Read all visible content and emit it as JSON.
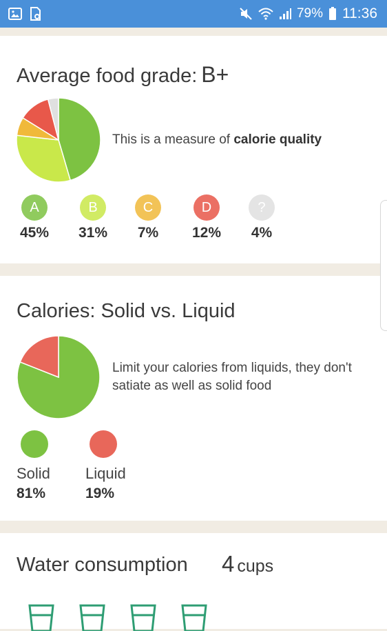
{
  "status_bar": {
    "left_icons": [
      "image-icon",
      "screenshot-icon"
    ],
    "right_icons": [
      "mute-icon",
      "wifi-icon",
      "signal-icon",
      "battery-icon"
    ],
    "battery": "79%",
    "time": "11:36",
    "bg_color": "#4a90d9"
  },
  "grade_card": {
    "title": "Average food grade:",
    "grade": "B+",
    "description_prefix": "This is a measure of ",
    "description_bold": "calorie quality",
    "grades": [
      {
        "letter": "A",
        "percent": "45%",
        "color": "#7dc242"
      },
      {
        "letter": "B",
        "percent": "31%",
        "color": "#c9e84a"
      },
      {
        "letter": "C",
        "percent": "7%",
        "color": "#f0b93a"
      },
      {
        "letter": "D",
        "percent": "12%",
        "color": "#e8584a"
      },
      {
        "letter": "?",
        "percent": "4%",
        "color": "#e0e0e0"
      }
    ]
  },
  "liquid_card": {
    "title": "Calories: Solid vs. Liquid",
    "description": "Limit your calories from liquids, they don't satiate as well as solid food",
    "items": [
      {
        "label": "Solid",
        "percent": "81%",
        "color": "#7dc242"
      },
      {
        "label": "Liquid",
        "percent": "19%",
        "color": "#e8675a"
      }
    ]
  },
  "water_card": {
    "title": "Water consumption",
    "amount": "4",
    "unit": "cups",
    "cups_count": 4
  },
  "chart_data": [
    {
      "type": "pie",
      "title": "Average food grade: B+",
      "categories": [
        "A",
        "B",
        "C",
        "D",
        "?"
      ],
      "values": [
        45,
        31,
        7,
        12,
        4
      ],
      "colors": [
        "#7dc242",
        "#c9e84a",
        "#f0b93a",
        "#e8584a",
        "#e0e0e0"
      ]
    },
    {
      "type": "pie",
      "title": "Calories: Solid vs. Liquid",
      "categories": [
        "Solid",
        "Liquid"
      ],
      "values": [
        81,
        19
      ],
      "colors": [
        "#7dc242",
        "#e8675a"
      ]
    }
  ]
}
